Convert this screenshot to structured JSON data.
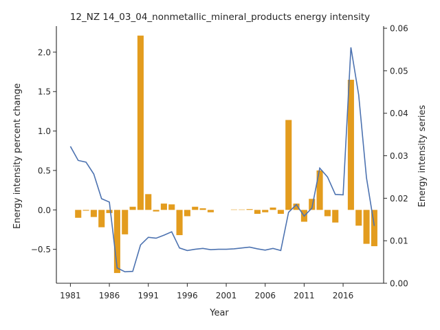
{
  "chart_data": {
    "type": "bar+line",
    "title": "12_NZ 14_03_04_nonmetallic_mineral_products energy intensity",
    "xlabel": "Year",
    "ylabel_left": "Energy intensity percent change",
    "ylabel_right": "Energy intensity series",
    "x_tick_labels": [
      "1981",
      "1986",
      "1991",
      "1996",
      "2001",
      "2006",
      "2011",
      "2016"
    ],
    "y_left_ticks": [
      "−0.5",
      "0.0",
      "0.5",
      "1.0",
      "1.5",
      "2.0"
    ],
    "y_right_ticks": [
      "0.00",
      "0.01",
      "0.02",
      "0.03",
      "0.04",
      "0.05",
      "0.06"
    ],
    "ylim_left": [
      -0.93,
      2.33
    ],
    "ylim_right": [
      0.0,
      0.0605
    ],
    "grid": false,
    "x": [
      1981,
      1982,
      1983,
      1984,
      1985,
      1986,
      1987,
      1988,
      1989,
      1990,
      1991,
      1992,
      1993,
      1994,
      1995,
      1996,
      1997,
      1998,
      1999,
      2000,
      2001,
      2002,
      2003,
      2004,
      2005,
      2006,
      2007,
      2008,
      2009,
      2010,
      2011,
      2012,
      2013,
      2014,
      2015,
      2016,
      2017,
      2018,
      2019,
      2020
    ],
    "series": [
      {
        "type": "bar",
        "axis": "left",
        "color": "#e39c1e",
        "values": [
          0.0,
          -0.1,
          -0.01,
          -0.09,
          -0.22,
          -0.04,
          -0.8,
          -0.31,
          0.04,
          2.21,
          0.2,
          -0.02,
          0.08,
          0.07,
          -0.32,
          -0.08,
          0.04,
          0.02,
          -0.03,
          0.0,
          0.0,
          0.005,
          0.005,
          0.01,
          -0.05,
          -0.03,
          0.03,
          -0.05,
          1.14,
          0.08,
          -0.15,
          0.14,
          0.5,
          -0.08,
          -0.16,
          0.0,
          1.65,
          -0.2,
          -0.43,
          -0.46
        ]
      },
      {
        "type": "line",
        "axis": "right",
        "color": "#4c72b0",
        "values": [
          0.0322,
          0.0289,
          0.0285,
          0.0257,
          0.0199,
          0.0191,
          0.0036,
          0.0027,
          0.0028,
          0.009,
          0.0108,
          0.0106,
          0.0113,
          0.0121,
          0.0083,
          0.0077,
          0.008,
          0.0082,
          0.0079,
          0.008,
          0.008,
          0.0081,
          0.0083,
          0.0085,
          0.0081,
          0.0078,
          0.0082,
          0.0077,
          0.0167,
          0.0185,
          0.0158,
          0.0177,
          0.0271,
          0.025,
          0.0209,
          0.0208,
          0.0555,
          0.0443,
          0.0248,
          0.0135
        ]
      }
    ]
  }
}
